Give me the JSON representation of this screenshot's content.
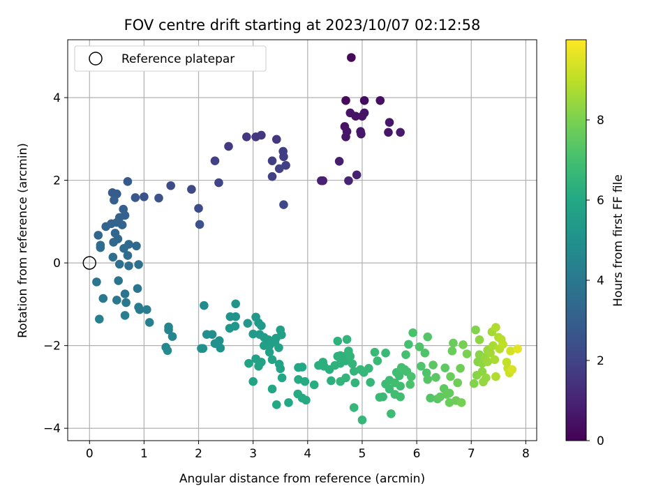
{
  "chart_data": {
    "type": "scatter",
    "title": "FOV centre drift starting at 2023/10/07 02:12:58",
    "xlabel": "Angular distance from reference (arcmin)",
    "ylabel": "Rotation from reference (arcmin)",
    "xlim": [
      -0.4,
      8.2
    ],
    "ylim": [
      -4.3,
      5.4
    ],
    "xticks": [
      0,
      1,
      2,
      3,
      4,
      5,
      6,
      7,
      8
    ],
    "yticks": [
      -4,
      -2,
      0,
      2,
      4
    ],
    "grid": true,
    "legend": {
      "placement": "top-left",
      "entries": [
        "Reference platepar"
      ]
    },
    "reference_point": {
      "x": 0,
      "y": 0,
      "label": "Reference platepar"
    },
    "colorbar": {
      "label": "Hours from first FF file",
      "range": [
        0,
        10
      ],
      "ticks": [
        0,
        2,
        4,
        6,
        8
      ],
      "colormap": "viridis"
    },
    "series": [
      {
        "points": [
          [
            4.8,
            4.97,
            0.2
          ],
          [
            4.7,
            3.93,
            0.3
          ],
          [
            5.04,
            3.93,
            0.3
          ],
          [
            5.33,
            3.93,
            0.4
          ],
          [
            4.78,
            3.63,
            0.5
          ],
          [
            5.04,
            3.63,
            0.5
          ],
          [
            4.88,
            3.55,
            0.5
          ],
          [
            5.0,
            3.55,
            0.5
          ],
          [
            5.5,
            3.4,
            0.6
          ],
          [
            4.68,
            3.3,
            0.5
          ],
          [
            4.72,
            3.18,
            0.6
          ],
          [
            4.97,
            3.18,
            0.6
          ],
          [
            5.48,
            3.16,
            0.6
          ],
          [
            5.7,
            3.16,
            0.7
          ],
          [
            4.98,
            3.12,
            0.6
          ],
          [
            4.7,
            3.05,
            0.6
          ],
          [
            4.58,
            2.46,
            0.8
          ],
          [
            4.9,
            2.13,
            0.9
          ],
          [
            4.25,
            1.99,
            0.9
          ],
          [
            4.28,
            1.99,
            0.9
          ],
          [
            4.75,
            1.99,
            1.0
          ],
          [
            2.88,
            3.05,
            1.6
          ],
          [
            3.05,
            3.05,
            1.6
          ],
          [
            3.15,
            3.09,
            1.6
          ],
          [
            3.43,
            2.99,
            1.6
          ],
          [
            3.55,
            2.7,
            1.8
          ],
          [
            3.56,
            2.57,
            1.8
          ],
          [
            3.35,
            2.47,
            1.8
          ],
          [
            3.6,
            2.36,
            1.8
          ],
          [
            3.48,
            2.28,
            1.9
          ],
          [
            3.35,
            2.09,
            1.9
          ],
          [
            3.56,
            1.41,
            2.1
          ],
          [
            2.55,
            2.82,
            1.7
          ],
          [
            2.3,
            2.47,
            1.9
          ],
          [
            2.37,
            1.94,
            2.0
          ],
          [
            1.87,
            1.78,
            2.2
          ],
          [
            2.0,
            1.32,
            2.3
          ],
          [
            2.02,
            0.93,
            2.5
          ],
          [
            1.49,
            1.87,
            2.3
          ],
          [
            1.27,
            1.57,
            2.5
          ],
          [
            1.0,
            1.6,
            2.6
          ],
          [
            0.84,
            1.58,
            2.7
          ],
          [
            0.7,
            1.97,
            2.8
          ],
          [
            0.42,
            1.7,
            2.9
          ],
          [
            0.5,
            1.67,
            2.9
          ],
          [
            0.45,
            1.52,
            3.0
          ],
          [
            0.62,
            1.3,
            3.0
          ],
          [
            0.55,
            1.1,
            3.1
          ],
          [
            0.65,
            1.15,
            3.1
          ],
          [
            0.4,
            0.95,
            3.2
          ],
          [
            0.5,
            0.98,
            3.2
          ],
          [
            0.6,
            0.92,
            3.2
          ],
          [
            0.3,
            0.88,
            3.2
          ],
          [
            0.16,
            0.67,
            3.3
          ],
          [
            0.47,
            0.72,
            3.3
          ],
          [
            0.52,
            0.58,
            3.3
          ],
          [
            0.44,
            0.5,
            3.4
          ],
          [
            0.72,
            0.45,
            3.4
          ],
          [
            0.86,
            0.41,
            3.4
          ],
          [
            0.2,
            0.37,
            3.5
          ],
          [
            0.2,
            0.43,
            3.5
          ],
          [
            0.63,
            0.35,
            3.5
          ],
          [
            0.7,
            0.18,
            3.5
          ],
          [
            0.43,
            0.14,
            3.6
          ],
          [
            0.55,
            -0.03,
            3.6
          ],
          [
            0.72,
            -0.07,
            3.6
          ],
          [
            0.9,
            -0.04,
            3.7
          ],
          [
            0.13,
            -0.46,
            3.8
          ],
          [
            0.53,
            -0.43,
            3.8
          ],
          [
            0.88,
            -0.62,
            3.9
          ],
          [
            0.65,
            -0.75,
            3.9
          ],
          [
            0.25,
            -0.86,
            4.0
          ],
          [
            0.5,
            -0.9,
            4.0
          ],
          [
            0.67,
            -0.96,
            4.0
          ],
          [
            0.9,
            -1.07,
            4.1
          ],
          [
            0.92,
            -1.13,
            4.1
          ],
          [
            1.05,
            -1.13,
            4.2
          ],
          [
            0.65,
            -1.27,
            4.2
          ],
          [
            0.18,
            -1.36,
            4.3
          ],
          [
            1.1,
            -1.44,
            4.3
          ],
          [
            1.45,
            -1.55,
            4.5
          ],
          [
            1.45,
            -1.62,
            4.5
          ],
          [
            1.52,
            -1.78,
            4.6
          ],
          [
            1.4,
            -2.04,
            4.6
          ],
          [
            1.43,
            -2.12,
            4.7
          ],
          [
            2.1,
            -1.03,
            4.7
          ],
          [
            2.15,
            -1.73,
            4.9
          ],
          [
            2.25,
            -1.73,
            4.9
          ],
          [
            2.3,
            -1.95,
            5.0
          ],
          [
            2.38,
            -1.88,
            5.0
          ],
          [
            2.4,
            -2.06,
            5.0
          ],
          [
            2.08,
            -2.07,
            5.0
          ],
          [
            2.05,
            -2.07,
            5.0
          ],
          [
            2.58,
            -1.3,
            5.1
          ],
          [
            2.68,
            -1.3,
            5.1
          ],
          [
            2.68,
            -0.99,
            5.1
          ],
          [
            2.57,
            -1.58,
            5.2
          ],
          [
            2.67,
            -1.53,
            5.2
          ],
          [
            2.9,
            -1.46,
            5.3
          ],
          [
            3.05,
            -1.31,
            5.3
          ],
          [
            3.1,
            -1.45,
            5.3
          ],
          [
            3.15,
            -1.52,
            5.4
          ],
          [
            3.0,
            -1.72,
            5.4
          ],
          [
            3.12,
            -1.73,
            5.4
          ],
          [
            3.2,
            -1.8,
            5.5
          ],
          [
            3.28,
            -1.86,
            5.5
          ],
          [
            3.42,
            -1.82,
            5.5
          ],
          [
            3.5,
            -1.62,
            5.6
          ],
          [
            3.52,
            -1.74,
            5.6
          ],
          [
            3.4,
            -1.92,
            5.6
          ],
          [
            3.2,
            -2.0,
            5.6
          ],
          [
            3.3,
            -2.0,
            5.6
          ],
          [
            3.47,
            -2.05,
            5.7
          ],
          [
            3.3,
            -2.16,
            5.7
          ],
          [
            3.05,
            -2.32,
            5.7
          ],
          [
            3.15,
            -2.4,
            5.8
          ],
          [
            3.35,
            -2.34,
            5.8
          ],
          [
            3.48,
            -2.45,
            5.8
          ],
          [
            3.5,
            -2.56,
            5.8
          ],
          [
            3.1,
            -2.5,
            5.8
          ],
          [
            2.92,
            -2.43,
            5.8
          ],
          [
            3.0,
            -2.87,
            5.8
          ],
          [
            3.53,
            -2.78,
            5.9
          ],
          [
            3.35,
            -3.05,
            5.9
          ],
          [
            3.43,
            -3.43,
            6.0
          ],
          [
            3.65,
            -3.38,
            6.0
          ],
          [
            3.83,
            -2.53,
            6.0
          ],
          [
            3.9,
            -2.52,
            6.0
          ],
          [
            3.83,
            -2.82,
            6.1
          ],
          [
            3.95,
            -2.87,
            6.1
          ],
          [
            3.82,
            -3.17,
            6.1
          ],
          [
            3.9,
            -3.27,
            6.1
          ],
          [
            3.97,
            -3.32,
            6.1
          ],
          [
            4.12,
            -2.95,
            6.2
          ],
          [
            4.2,
            -2.48,
            6.3
          ],
          [
            4.3,
            -2.5,
            6.3
          ],
          [
            4.28,
            -2.4,
            6.3
          ],
          [
            4.4,
            -2.58,
            6.3
          ],
          [
            4.43,
            -2.85,
            6.3
          ],
          [
            4.5,
            -2.48,
            6.4
          ],
          [
            4.55,
            -2.26,
            6.4
          ],
          [
            4.55,
            -1.89,
            6.4
          ],
          [
            4.6,
            -2.24,
            6.4
          ],
          [
            4.6,
            -2.43,
            6.4
          ],
          [
            4.7,
            -2.25,
            6.4
          ],
          [
            4.7,
            -2.37,
            6.4
          ],
          [
            4.72,
            -1.85,
            6.5
          ],
          [
            4.75,
            -2.13,
            6.5
          ],
          [
            4.78,
            -2.26,
            6.5
          ],
          [
            4.82,
            -2.44,
            6.5
          ],
          [
            4.85,
            -2.62,
            6.5
          ],
          [
            4.6,
            -2.87,
            6.5
          ],
          [
            4.7,
            -2.78,
            6.5
          ],
          [
            4.87,
            -2.9,
            6.5
          ],
          [
            4.97,
            -2.58,
            6.6
          ],
          [
            5.03,
            -2.65,
            6.6
          ],
          [
            5.12,
            -2.55,
            6.6
          ],
          [
            5.15,
            -2.89,
            6.6
          ],
          [
            4.85,
            -3.5,
            6.6
          ],
          [
            5.0,
            -3.8,
            6.6
          ],
          [
            5.23,
            -2.16,
            6.7
          ],
          [
            5.28,
            -2.37,
            6.7
          ],
          [
            5.32,
            -3.25,
            6.7
          ],
          [
            5.38,
            -3.24,
            6.7
          ],
          [
            5.43,
            -2.18,
            6.7
          ],
          [
            5.43,
            -2.93,
            6.8
          ],
          [
            5.5,
            -2.84,
            6.8
          ],
          [
            5.5,
            -3.05,
            6.8
          ],
          [
            5.53,
            -3.65,
            6.8
          ],
          [
            5.6,
            -2.9,
            6.9
          ],
          [
            5.6,
            -3.18,
            6.9
          ],
          [
            5.63,
            -2.65,
            6.9
          ],
          [
            5.68,
            -2.73,
            6.9
          ],
          [
            5.7,
            -2.98,
            6.9
          ],
          [
            5.7,
            -3.24,
            6.9
          ],
          [
            5.72,
            -2.53,
            7.0
          ],
          [
            5.78,
            -2.58,
            7.0
          ],
          [
            5.8,
            -2.22,
            7.0
          ],
          [
            5.82,
            -2.63,
            7.0
          ],
          [
            5.85,
            -1.97,
            7.0
          ],
          [
            5.88,
            -2.94,
            7.1
          ],
          [
            5.9,
            -2.75,
            7.1
          ],
          [
            5.93,
            -1.69,
            7.1
          ],
          [
            6.05,
            -2.03,
            7.2
          ],
          [
            6.08,
            -2.5,
            7.2
          ],
          [
            6.15,
            -2.18,
            7.2
          ],
          [
            6.18,
            -2.66,
            7.2
          ],
          [
            6.2,
            -2.82,
            7.3
          ],
          [
            6.2,
            -1.79,
            7.3
          ],
          [
            6.25,
            -3.27,
            7.3
          ],
          [
            6.3,
            -2.47,
            7.4
          ],
          [
            6.35,
            -2.77,
            7.4
          ],
          [
            6.38,
            -3.29,
            7.4
          ],
          [
            6.43,
            -3.24,
            7.5
          ],
          [
            6.5,
            -3.04,
            7.5
          ],
          [
            6.52,
            -2.54,
            7.5
          ],
          [
            6.55,
            -3.18,
            7.6
          ],
          [
            6.6,
            -3.15,
            7.6
          ],
          [
            6.6,
            -3.38,
            7.7
          ],
          [
            6.62,
            -2.75,
            7.7
          ],
          [
            6.65,
            -2.13,
            7.7
          ],
          [
            6.67,
            -1.94,
            7.7
          ],
          [
            6.72,
            -3.33,
            7.8
          ],
          [
            6.75,
            -2.9,
            7.8
          ],
          [
            6.8,
            -2.55,
            7.8
          ],
          [
            6.82,
            -3.38,
            7.9
          ],
          [
            6.85,
            -1.98,
            7.9
          ],
          [
            6.92,
            -2.2,
            8.0
          ],
          [
            7.05,
            -2.92,
            8.1
          ],
          [
            7.08,
            -1.62,
            8.1
          ],
          [
            7.1,
            -2.72,
            8.2
          ],
          [
            7.12,
            -2.39,
            8.2
          ],
          [
            7.15,
            -2.22,
            8.2
          ],
          [
            7.15,
            -1.86,
            8.3
          ],
          [
            7.2,
            -2.43,
            8.3
          ],
          [
            7.2,
            -2.63,
            8.3
          ],
          [
            7.22,
            -2.88,
            8.4
          ],
          [
            7.25,
            -2.28,
            8.4
          ],
          [
            7.27,
            -2.78,
            8.4
          ],
          [
            7.3,
            -2.11,
            8.5
          ],
          [
            7.3,
            -2.39,
            8.5
          ],
          [
            7.35,
            -2.18,
            8.6
          ],
          [
            7.38,
            -1.67,
            8.6
          ],
          [
            7.4,
            -2.0,
            8.7
          ],
          [
            7.43,
            -2.34,
            8.7
          ],
          [
            7.45,
            -1.56,
            8.8
          ],
          [
            7.45,
            -2.75,
            8.8
          ],
          [
            7.5,
            -1.8,
            8.8
          ],
          [
            7.52,
            -2.08,
            8.9
          ],
          [
            7.55,
            -1.85,
            8.9
          ],
          [
            7.58,
            -1.97,
            9.0
          ],
          [
            7.65,
            -2.4,
            9.1
          ],
          [
            7.67,
            -2.55,
            9.1
          ],
          [
            7.7,
            -2.66,
            9.2
          ],
          [
            7.72,
            -2.13,
            9.3
          ],
          [
            7.75,
            -2.58,
            9.4
          ],
          [
            7.85,
            -2.08,
            9.6
          ]
        ]
      }
    ]
  }
}
